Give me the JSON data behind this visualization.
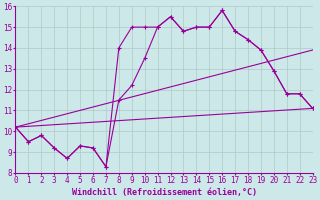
{
  "xlabel": "Windchill (Refroidissement éolien,°C)",
  "xlim": [
    0,
    23
  ],
  "ylim": [
    8,
    16
  ],
  "xticks": [
    0,
    1,
    2,
    3,
    4,
    5,
    6,
    7,
    8,
    9,
    10,
    11,
    12,
    13,
    14,
    15,
    16,
    17,
    18,
    19,
    20,
    21,
    22,
    23
  ],
  "yticks": [
    8,
    9,
    10,
    11,
    12,
    13,
    14,
    15,
    16
  ],
  "background_color": "#cce8e8",
  "line_color": "#990099",
  "grid_color": "#b0c8c8",
  "line1_x": [
    0,
    1,
    2,
    3,
    4,
    5,
    6,
    7,
    8,
    9,
    10,
    11,
    12,
    13,
    14,
    15,
    16,
    17,
    18,
    19,
    20,
    21,
    22,
    23
  ],
  "line1_y": [
    10.2,
    9.5,
    9.8,
    9.2,
    8.7,
    9.3,
    9.2,
    8.3,
    14.0,
    15.0,
    15.0,
    15.0,
    15.5,
    14.8,
    15.0,
    15.0,
    15.8,
    14.8,
    14.4,
    13.9,
    12.9,
    11.8,
    11.8,
    11.1
  ],
  "line2_x": [
    0,
    1,
    2,
    3,
    4,
    5,
    6,
    7,
    8,
    9,
    10,
    11,
    12,
    13,
    14,
    15,
    16,
    17,
    18,
    19,
    20,
    21,
    22,
    23
  ],
  "line2_y": [
    10.2,
    9.5,
    9.8,
    9.2,
    8.7,
    9.3,
    9.2,
    8.3,
    11.5,
    12.2,
    13.5,
    15.0,
    15.5,
    14.8,
    15.0,
    15.0,
    15.8,
    14.8,
    14.4,
    13.9,
    12.9,
    11.8,
    11.8,
    11.1
  ],
  "line3_x": [
    0,
    23
  ],
  "line3_y": [
    10.2,
    11.1
  ],
  "line4_x": [
    0,
    23
  ],
  "line4_y": [
    10.2,
    13.9
  ],
  "font_size": 6,
  "tick_font_size": 5.5
}
